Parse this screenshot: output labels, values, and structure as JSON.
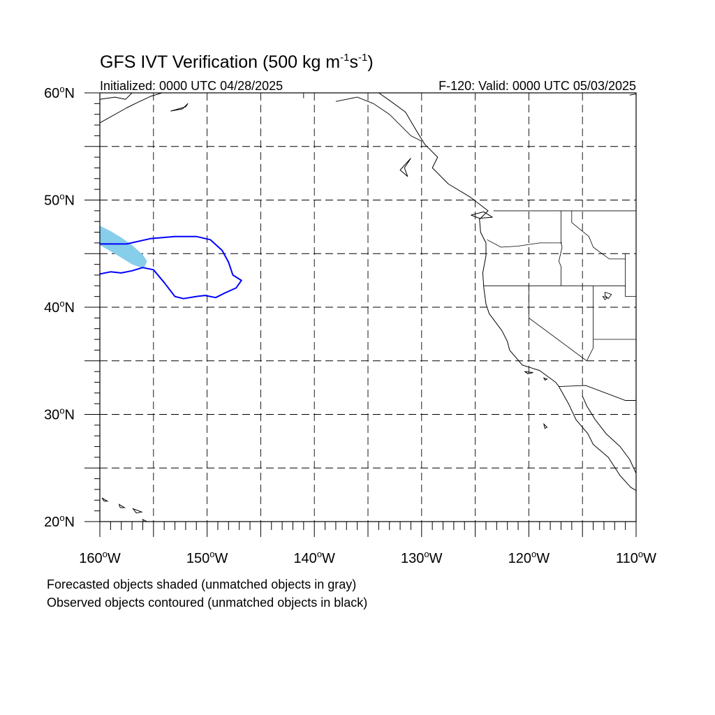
{
  "title": {
    "main": "GFS IVT Verification (500 kg m",
    "exp1": "-1",
    "mid": "s",
    "exp2": "-1",
    "end": ")"
  },
  "initialized": "Initialized: 0000 UTC 04/28/2025",
  "valid": "F-120: Valid: 0000 UTC 05/03/2025",
  "footnotes": [
    "Forecasted objects shaded (unmatched objects in gray)",
    "Observed objects contoured (unmatched objects in black)"
  ],
  "colors": {
    "forecast_fill": "#87ceeb",
    "observed_contour": "#0000ff",
    "coast": "#000000",
    "grid": "#000000"
  },
  "map": {
    "projection": "cylindrical-equidistant",
    "lon_range": [
      -160,
      -110
    ],
    "lat_range": [
      20,
      60
    ],
    "grid_lon_step": 5,
    "grid_lat_step": 5,
    "grid_style": "dashed",
    "lat_labels": [
      {
        "lat": 60,
        "num": "60",
        "hem": "N"
      },
      {
        "lat": 50,
        "num": "50",
        "hem": "N"
      },
      {
        "lat": 40,
        "num": "40",
        "hem": "N"
      },
      {
        "lat": 30,
        "num": "30",
        "hem": "N"
      },
      {
        "lat": 20,
        "num": "20",
        "hem": "N"
      }
    ],
    "lon_labels": [
      {
        "lon": -160,
        "num": "160",
        "hem": "W"
      },
      {
        "lon": -150,
        "num": "150",
        "hem": "W"
      },
      {
        "lon": -140,
        "num": "140",
        "hem": "W"
      },
      {
        "lon": -130,
        "num": "130",
        "hem": "W"
      },
      {
        "lon": -120,
        "num": "120",
        "hem": "W"
      },
      {
        "lon": -110,
        "num": "110",
        "hem": "W"
      }
    ],
    "forecast_objects": [
      {
        "status": "matched",
        "polygon": [
          [
            -160,
            47.6
          ],
          [
            -159.0,
            47.1
          ],
          [
            -158.0,
            46.5
          ],
          [
            -157.0,
            45.8
          ],
          [
            -156.0,
            44.9
          ],
          [
            -155.6,
            44.3
          ],
          [
            -155.9,
            43.6
          ],
          [
            -157.0,
            44.0
          ],
          [
            -158.3,
            44.8
          ],
          [
            -159.3,
            45.4
          ],
          [
            -160,
            45.8
          ]
        ]
      }
    ],
    "observed_objects": [
      {
        "status": "matched",
        "contour": [
          [
            -160,
            45.9
          ],
          [
            -157.5,
            45.9
          ],
          [
            -155.3,
            46.4
          ],
          [
            -153.0,
            46.6
          ],
          [
            -151.0,
            46.6
          ],
          [
            -149.7,
            46.3
          ],
          [
            -148.6,
            45.3
          ],
          [
            -148.0,
            44.2
          ],
          [
            -147.6,
            43.0
          ],
          [
            -146.8,
            42.5
          ],
          [
            -147.3,
            41.8
          ],
          [
            -148.4,
            41.3
          ],
          [
            -149.2,
            40.9
          ],
          [
            -150.2,
            41.1
          ],
          [
            -151.0,
            41.0
          ],
          [
            -152.2,
            40.8
          ],
          [
            -153.0,
            41.0
          ],
          [
            -154.0,
            42.3
          ],
          [
            -155.0,
            43.5
          ],
          [
            -156.0,
            43.7
          ],
          [
            -157.0,
            43.4
          ],
          [
            -158.0,
            43.2
          ],
          [
            -159.0,
            43.3
          ],
          [
            -160,
            43.1
          ]
        ]
      }
    ],
    "coastlines": [
      [
        [
          -134.0,
          60.0
        ],
        [
          -133.0,
          59.3
        ],
        [
          -131.5,
          58.2
        ],
        [
          -130.5,
          56.5
        ],
        [
          -129.7,
          55.2
        ],
        [
          -128.5,
          54.0
        ],
        [
          -129.0,
          53.0
        ],
        [
          -127.5,
          51.5
        ],
        [
          -125.5,
          50.3
        ],
        [
          -123.8,
          49.0
        ],
        [
          -124.6,
          48.2
        ],
        [
          -124.5,
          47.0
        ],
        [
          -124.0,
          46.0
        ],
        [
          -124.0,
          44.8
        ],
        [
          -124.3,
          43.2
        ],
        [
          -124.2,
          41.8
        ],
        [
          -124.0,
          40.3
        ],
        [
          -123.7,
          39.4
        ],
        [
          -122.5,
          37.8
        ],
        [
          -122.0,
          36.8
        ],
        [
          -121.8,
          36.0
        ],
        [
          -120.6,
          34.6
        ],
        [
          -119.0,
          34.1
        ],
        [
          -117.5,
          33.0
        ],
        [
          -117.2,
          32.6
        ],
        [
          -116.3,
          31.0
        ],
        [
          -115.6,
          29.5
        ],
        [
          -114.5,
          28.2
        ],
        [
          -114.0,
          27.2
        ],
        [
          -112.6,
          26.0
        ],
        [
          -111.5,
          24.3
        ],
        [
          -110.5,
          23.2
        ],
        [
          -110.0,
          22.9
        ]
      ],
      [
        [
          -115.0,
          31.7
        ],
        [
          -114.6,
          30.8
        ],
        [
          -113.8,
          29.5
        ],
        [
          -112.8,
          28.2
        ],
        [
          -111.5,
          27.0
        ],
        [
          -110.6,
          25.8
        ],
        [
          -110.0,
          24.5
        ]
      ],
      [
        [
          -160.0,
          57.2
        ],
        [
          -157.5,
          58.6
        ],
        [
          -156.5,
          59.1
        ],
        [
          -155.2,
          59.7
        ],
        [
          -154.2,
          60.0
        ]
      ],
      [
        [
          -160.0,
          59.4
        ],
        [
          -158.6,
          59.6
        ],
        [
          -157.6,
          59.4
        ],
        [
          -157.0,
          60.0
        ]
      ],
      [
        [
          -153.4,
          58.3
        ],
        [
          -152.0,
          58.7
        ],
        [
          -151.8,
          59.0
        ],
        [
          -152.3,
          58.5
        ],
        [
          -153.4,
          58.3
        ]
      ],
      [
        [
          -131.0,
          53.9
        ],
        [
          -131.6,
          53.0
        ],
        [
          -131.3,
          52.2
        ],
        [
          -132.0,
          52.8
        ],
        [
          -131.0,
          53.9
        ]
      ],
      [
        [
          -125.4,
          48.6
        ],
        [
          -124.2,
          48.9
        ],
        [
          -123.4,
          48.4
        ],
        [
          -124.6,
          48.3
        ],
        [
          -125.4,
          48.6
        ]
      ],
      [
        [
          -110.6,
          59.8
        ],
        [
          -110.0,
          59.9
        ]
      ]
    ],
    "islands": [
      [
        [
          -159.8,
          22.2
        ],
        [
          -159.3,
          21.9
        ],
        [
          -159.6,
          21.9
        ],
        [
          -159.8,
          22.2
        ]
      ],
      [
        [
          -158.2,
          21.6
        ],
        [
          -157.7,
          21.3
        ],
        [
          -158.1,
          21.3
        ],
        [
          -158.2,
          21.6
        ]
      ],
      [
        [
          -156.9,
          21.2
        ],
        [
          -156.1,
          20.9
        ],
        [
          -156.6,
          20.8
        ],
        [
          -156.9,
          21.2
        ]
      ],
      [
        [
          -156.0,
          20.2
        ],
        [
          -155.2,
          19.8
        ],
        [
          -155.8,
          19.6
        ],
        [
          -156.0,
          20.2
        ]
      ],
      [
        [
          -120.4,
          34.0
        ],
        [
          -119.6,
          33.9
        ],
        [
          -120.1,
          33.8
        ],
        [
          -120.4,
          34.0
        ]
      ],
      [
        [
          -118.6,
          33.4
        ],
        [
          -118.3,
          33.3
        ],
        [
          -118.5,
          33.2
        ],
        [
          -118.6,
          33.4
        ]
      ],
      [
        [
          -118.6,
          29.1
        ],
        [
          -118.3,
          28.8
        ],
        [
          -118.5,
          28.7
        ],
        [
          -118.6,
          29.1
        ]
      ]
    ],
    "lakes": [
      [
        [
          -112.9,
          41.4
        ],
        [
          -112.3,
          41.2
        ],
        [
          -112.6,
          40.8
        ],
        [
          -112.9,
          41.1
        ],
        [
          -112.9,
          41.4
        ]
      ],
      [
        [
          -113.1,
          41.0
        ],
        [
          -112.7,
          40.9
        ],
        [
          -112.9,
          40.7
        ],
        [
          -113.1,
          41.0
        ]
      ]
    ],
    "borders": [
      [
        [
          -123.3,
          49.0
        ],
        [
          -110,
          49.0
        ]
      ],
      [
        [
          -141.0,
          60.0
        ],
        [
          -141.0,
          59.5
        ]
      ],
      [
        [
          -138.0,
          59.2
        ],
        [
          -136.0,
          59.6
        ],
        [
          -134.5,
          59.0
        ],
        [
          -133.0,
          58.0
        ],
        [
          -131.0,
          56.0
        ],
        [
          -130.0,
          55.5
        ]
      ],
      [
        [
          -117.2,
          32.6
        ],
        [
          -114.7,
          32.7
        ],
        [
          -111.0,
          31.3
        ],
        [
          -110,
          31.3
        ]
      ]
    ],
    "state_lines": [
      [
        [
          -124.2,
          42.0
        ],
        [
          -111.0,
          42.0
        ]
      ],
      [
        [
          -120.0,
          42.0
        ],
        [
          -120.0,
          39.0
        ],
        [
          -114.6,
          35.0
        ]
      ],
      [
        [
          -114.0,
          42.0
        ],
        [
          -114.0,
          36.2
        ],
        [
          -114.6,
          35.0
        ]
      ],
      [
        [
          -117.0,
          49.0
        ],
        [
          -117.0,
          46.0
        ],
        [
          -116.9,
          45.6
        ],
        [
          -117.2,
          44.3
        ],
        [
          -117.0,
          43.8
        ],
        [
          -117.0,
          42.0
        ]
      ],
      [
        [
          -123.9,
          46.3
        ],
        [
          -122.6,
          45.6
        ],
        [
          -121.0,
          45.7
        ],
        [
          -119.0,
          46.0
        ],
        [
          -116.9,
          46.0
        ]
      ],
      [
        [
          -116.0,
          49.0
        ],
        [
          -116.0,
          47.9
        ],
        [
          -114.4,
          46.6
        ],
        [
          -114.0,
          45.6
        ],
        [
          -112.5,
          44.5
        ],
        [
          -111.0,
          44.5
        ]
      ],
      [
        [
          -111.0,
          45.0
        ],
        [
          -111.0,
          41.0
        ],
        [
          -110,
          41.0
        ]
      ],
      [
        [
          -114.0,
          37.0
        ],
        [
          -110,
          37.0
        ]
      ]
    ]
  }
}
